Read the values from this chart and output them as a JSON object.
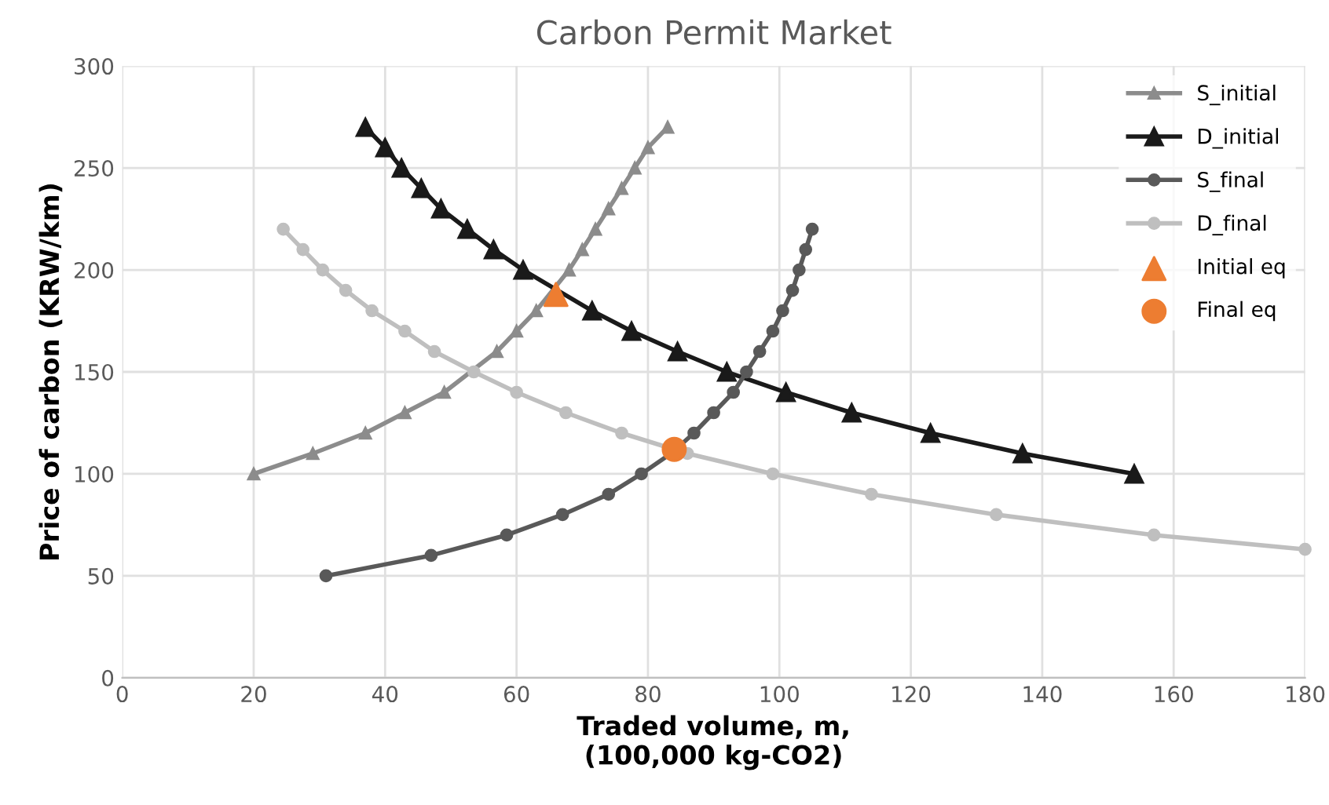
{
  "chart_data": {
    "type": "line",
    "title": "Carbon Permit Market",
    "xlabel": "Traded volume, m,\n(100,000 kg-CO2)",
    "ylabel": "Price of carbon (KRW/km)",
    "xlim": [
      0,
      180
    ],
    "xticks": [
      0,
      20,
      40,
      60,
      80,
      100,
      120,
      140,
      160,
      180
    ],
    "ylim": [
      0,
      300
    ],
    "yticks": [
      0,
      50,
      100,
      150,
      200,
      250,
      300
    ],
    "grid": true,
    "legend": "top right",
    "series": [
      {
        "name": "S_initial",
        "color": "#8c8c8c",
        "marker": "triangle",
        "x": [
          20,
          29,
          37,
          43,
          49,
          53,
          57,
          60,
          63,
          65,
          68,
          70,
          72,
          74,
          76,
          78,
          80,
          83
        ],
        "values": [
          100,
          110,
          120,
          130,
          140,
          null,
          160,
          170,
          180,
          null,
          200,
          210,
          220,
          230,
          240,
          250,
          260,
          270
        ]
      },
      {
        "name": "D_initial",
        "color": "#1a1a1a",
        "marker": "triangle",
        "x": [
          37,
          40,
          42.5,
          45.5,
          48.5,
          52.5,
          56.5,
          61,
          66,
          71.5,
          77.5,
          84.5,
          92,
          101,
          111,
          123,
          137,
          154
        ],
        "values": [
          270,
          260,
          250,
          240,
          230,
          220,
          210,
          200,
          null,
          180,
          170,
          160,
          150,
          140,
          130,
          120,
          110,
          100
        ]
      },
      {
        "name": "S_final",
        "color": "#595959",
        "marker": "circle",
        "x": [
          31,
          47,
          58.5,
          67,
          74,
          79,
          83.5,
          87,
          90,
          93,
          95,
          97,
          99,
          100.5,
          102,
          103,
          104,
          105
        ],
        "values": [
          50,
          60,
          70,
          80,
          90,
          100,
          110,
          120,
          130,
          140,
          150,
          160,
          170,
          180,
          190,
          200,
          210,
          220
        ]
      },
      {
        "name": "D_final",
        "color": "#bfbfbf",
        "marker": "circle",
        "x": [
          24.5,
          27.5,
          30.5,
          34,
          38,
          43,
          47.5,
          53.5,
          60,
          67.5,
          76,
          86,
          99,
          114,
          133,
          157,
          180
        ],
        "values": [
          220,
          210,
          200,
          190,
          180,
          170,
          160,
          150,
          140,
          130,
          120,
          110,
          100,
          90,
          80,
          70,
          63
        ]
      },
      {
        "name": "Initial eq",
        "type": "scatter",
        "color": "#ed7d31",
        "marker": "triangle",
        "x": [
          66
        ],
        "values": [
          188
        ]
      },
      {
        "name": "Final eq",
        "type": "scatter",
        "color": "#ed7d31",
        "marker": "circle",
        "x": [
          84
        ],
        "values": [
          112
        ]
      }
    ]
  }
}
